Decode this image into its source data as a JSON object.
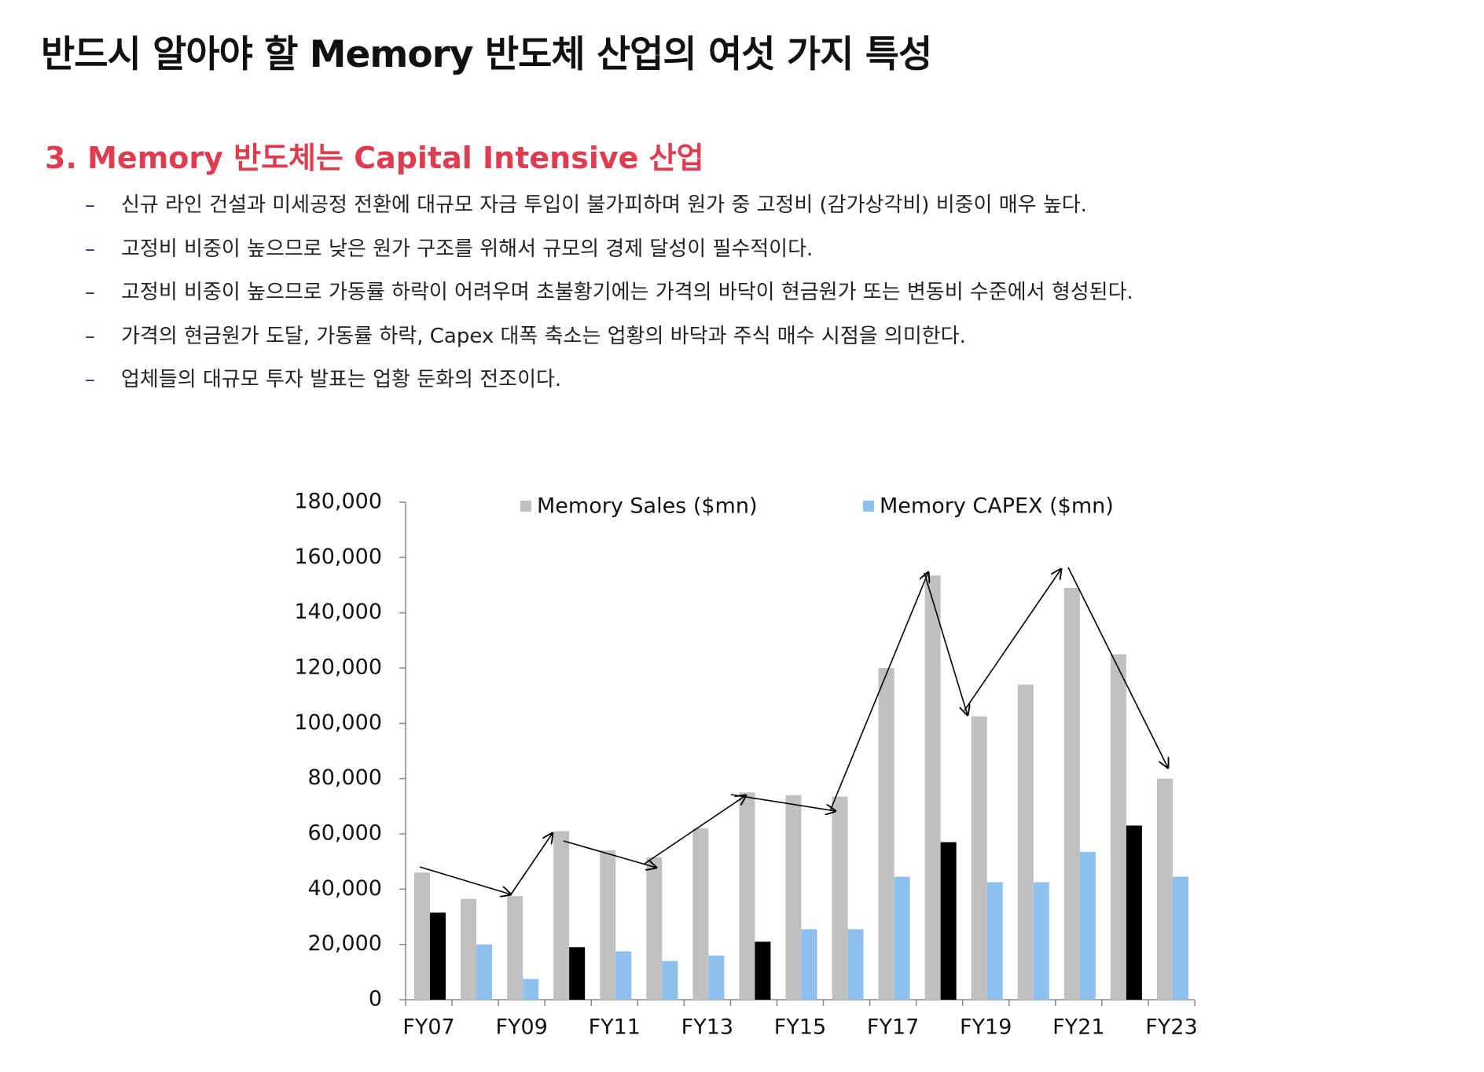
{
  "header": {
    "title": "반드시 알아야 할 Memory 반도체 산업의 여섯 가지 특성"
  },
  "section": {
    "heading": "3. Memory 반도체는 Capital Intensive 산업",
    "bullet_marker": "–",
    "bullets": [
      "신규 라인 건설과 미세공정 전환에 대규모 자금 투입이 불가피하며 원가 중 고정비 (감가상각비) 비중이 매우 높다.",
      "고정비 비중이 높으므로 낮은 원가 구조를 위해서 규모의 경제 달성이 필수적이다.",
      "고정비 비중이 높으므로 가동률 하락이 어려우며 초불황기에는 가격의 바닥이 현금원가 또는 변동비 수준에서 형성된다.",
      "가격의 현금원가 도달, 가동률 하락, Capex 대폭 축소는 업황의 바닥과 주식 매수 시점을 의미한다.",
      "업체들의 대규모 투자 발표는 업황 둔화의 전조이다."
    ]
  },
  "chart_data": {
    "type": "bar",
    "categories": [
      "FY07",
      null,
      "FY09",
      null,
      "FY11",
      null,
      "FY13",
      null,
      "FY15",
      null,
      "FY17",
      null,
      "FY19",
      null,
      "FY21",
      null,
      "FY23"
    ],
    "series": [
      {
        "name": "Memory Sales ($mn)",
        "color": "#c0c0c0",
        "values": [
          46000,
          36500,
          37500,
          61000,
          54000,
          51500,
          62000,
          75000,
          74000,
          73500,
          120000,
          153500,
          102500,
          114000,
          149000,
          125000,
          80000
        ]
      },
      {
        "name": "Memory CAPEX ($mn)",
        "color": "#8dc0ed",
        "colors": [
          "#000000",
          "#8dc0ed",
          "#8dc0ed",
          "#000000",
          "#8dc0ed",
          "#8dc0ed",
          "#8dc0ed",
          "#000000",
          "#8dc0ed",
          "#8dc0ed",
          "#8dc0ed",
          "#000000",
          "#8dc0ed",
          "#8dc0ed",
          "#8dc0ed",
          "#000000",
          "#8dc0ed"
        ],
        "values": [
          31500,
          20000,
          7500,
          19000,
          17500,
          14000,
          16000,
          21000,
          25500,
          25500,
          44500,
          57000,
          42500,
          42500,
          53500,
          63000,
          44500
        ]
      }
    ],
    "ylim": [
      0,
      180000
    ],
    "yticks": [
      0,
      {
        "value": 20000,
        "label": "20,000"
      },
      {
        "value": 40000,
        "label": "40,000"
      },
      {
        "value": 60000,
        "label": "60,000"
      },
      {
        "value": 80000,
        "label": "80,000"
      },
      {
        "value": 100000,
        "label": "100,000"
      },
      {
        "value": 120000,
        "label": "120,000"
      },
      {
        "value": 140000,
        "label": "140,000"
      },
      {
        "value": 160000,
        "label": "160,000"
      },
      {
        "value": 180000,
        "label": "180,000"
      }
    ],
    "grid": false,
    "legend": "top"
  }
}
